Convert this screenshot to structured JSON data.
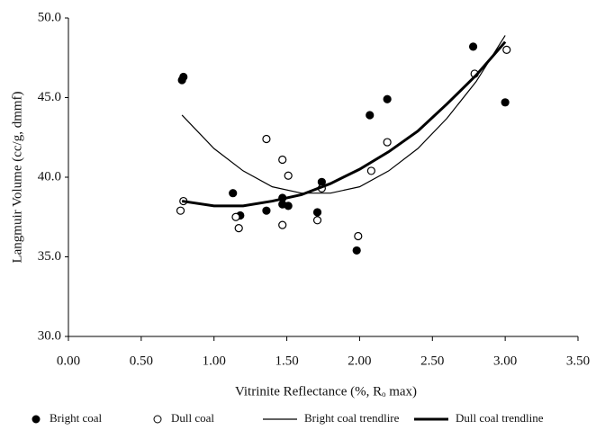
{
  "chart_data": {
    "type": "scatter",
    "x_label": "Vitrinite Reflectance (%, Rₒ max)",
    "y_label": "Langmuir Volume (cc/g, dmmf)",
    "xlim": [
      0,
      3.5
    ],
    "xticks": [
      {
        "value": 0,
        "label": "0.00"
      },
      {
        "value": 0.5,
        "label": "0.50"
      },
      {
        "value": 1,
        "label": "1.00"
      },
      {
        "value": 1.5,
        "label": "1.50"
      },
      {
        "value": 2,
        "label": "2.00"
      },
      {
        "value": 2.5,
        "label": "2.50"
      },
      {
        "value": 3,
        "label": "3.00"
      },
      {
        "value": 3.5,
        "label": "3.50"
      }
    ],
    "ylim": [
      30,
      50
    ],
    "yticks": [
      {
        "value": 30,
        "label": "30.0"
      },
      {
        "value": 35,
        "label": "35.0"
      },
      {
        "value": 40,
        "label": "40.0"
      },
      {
        "value": 45,
        "label": "45.0"
      },
      {
        "value": 50,
        "label": "50.0"
      }
    ],
    "series": [
      {
        "name": "Bright coal",
        "style": "filled",
        "color": "#000000",
        "x": [
          0.78,
          0.79,
          1.13,
          1.18,
          1.36,
          1.47,
          1.47,
          1.51,
          1.74,
          1.71,
          1.98,
          2.07,
          2.19,
          2.78,
          3.0
        ],
        "values": [
          46.1,
          46.3,
          39.0,
          37.6,
          37.9,
          38.3,
          38.7,
          38.2,
          39.7,
          37.8,
          35.4,
          43.9,
          44.9,
          48.2,
          44.7
        ]
      },
      {
        "name": "Dull coal",
        "style": "open",
        "color": "#000000",
        "x": [
          0.77,
          0.79,
          1.15,
          1.17,
          1.36,
          1.47,
          1.51,
          1.47,
          1.71,
          1.74,
          1.99,
          2.08,
          2.19,
          2.79,
          3.01
        ],
        "values": [
          37.9,
          38.5,
          37.5,
          36.8,
          42.4,
          41.1,
          40.1,
          37.0,
          37.3,
          39.3,
          36.3,
          40.4,
          42.2,
          46.5,
          48.0
        ]
      },
      {
        "name": "Bright coal trendlire",
        "style": "thin-line",
        "color": "#000000",
        "x": [
          0.78,
          1.0,
          1.2,
          1.4,
          1.6,
          1.8,
          2.0,
          2.2,
          2.4,
          2.6,
          2.8,
          3.0
        ],
        "values": [
          43.9,
          41.8,
          40.4,
          39.4,
          39.0,
          39.0,
          39.4,
          40.4,
          41.8,
          43.7,
          46.0,
          48.9
        ]
      },
      {
        "name": "Dull coal trendline",
        "style": "thick-line",
        "color": "#000000",
        "x": [
          0.78,
          1.0,
          1.2,
          1.4,
          1.6,
          1.8,
          2.0,
          2.2,
          2.4,
          2.6,
          2.8,
          3.0
        ],
        "values": [
          38.5,
          38.2,
          38.2,
          38.5,
          38.9,
          39.6,
          40.5,
          41.6,
          42.9,
          44.6,
          46.4,
          48.5
        ]
      }
    ]
  }
}
